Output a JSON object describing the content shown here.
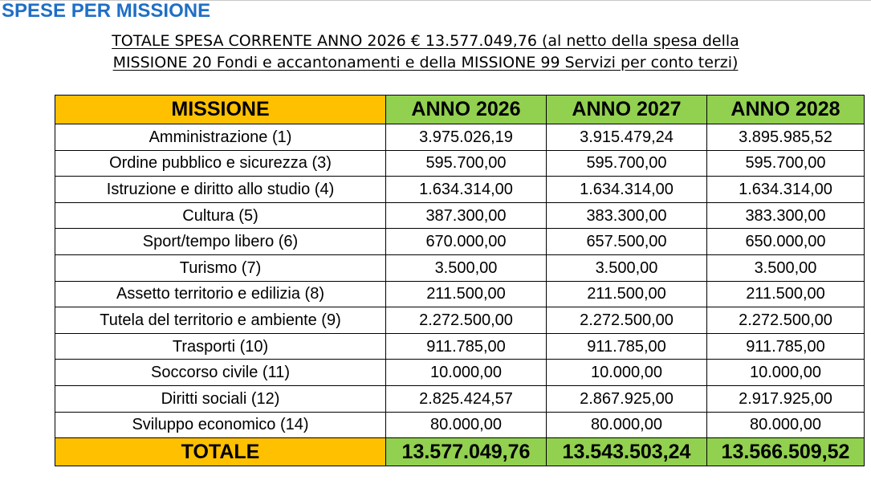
{
  "header": {
    "title": "SPESE PER MISSIONE",
    "subtitle_line1": "TOTALE SPESA CORRENTE ANNO 2026 € 13.577.049,76 (al netto della spesa della",
    "subtitle_line2": "MISSIONE 20 Fondi e accantonamenti e della MISSIONE 99 Servizi per conto terzi)"
  },
  "table": {
    "columns": [
      "MISSIONE",
      "ANNO 2026",
      "ANNO 2027",
      "ANNO 2028"
    ],
    "rows": [
      [
        "Amministrazione (1)",
        "3.975.026,19",
        "3.915.479,24",
        "3.895.985,52"
      ],
      [
        "Ordine pubblico e sicurezza (3)",
        "595.700,00",
        "595.700,00",
        "595.700,00"
      ],
      [
        "Istruzione e diritto allo studio (4)",
        "1.634.314,00",
        "1.634.314,00",
        "1.634.314,00"
      ],
      [
        "Cultura (5)",
        "387.300,00",
        "383.300,00",
        "383.300,00"
      ],
      [
        "Sport/tempo libero (6)",
        "670.000,00",
        "657.500,00",
        "650.000,00"
      ],
      [
        "Turismo (7)",
        "3.500,00",
        "3.500,00",
        "3.500,00"
      ],
      [
        "Assetto territorio e edilizia (8)",
        "211.500,00",
        "211.500,00",
        "211.500,00"
      ],
      [
        "Tutela del territorio e ambiente (9)",
        "2.272.500,00",
        "2.272.500,00",
        "2.272.500,00"
      ],
      [
        "Trasporti (10)",
        "911.785,00",
        "911.785,00",
        "911.785,00"
      ],
      [
        "Soccorso civile (11)",
        "10.000,00",
        "10.000,00",
        "10.000,00"
      ],
      [
        "Diritti sociali (12)",
        "2.825.424,57",
        "2.867.925,00",
        "2.917.925,00"
      ],
      [
        "Sviluppo economico (14)",
        "80.000,00",
        "80.000,00",
        "80.000,00"
      ]
    ],
    "total": [
      "TOTALE",
      "13.577.049,76",
      "13.543.503,24",
      "13.566.509,52"
    ]
  },
  "colors": {
    "title_blue": "#1f6fc5",
    "mission_header_orange": "#ffc000",
    "year_header_green": "#92d050"
  }
}
